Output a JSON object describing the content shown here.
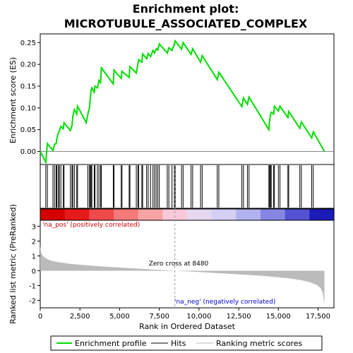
{
  "chart_data": {
    "type": "line",
    "title_line1": "Enrichment plot:",
    "title_line2": "MICROTUBULE_ASSOCIATED_COMPLEX",
    "es_panel": {
      "ylabel": "Enrichment score (ES)",
      "ylim": [
        -0.03,
        0.27
      ],
      "yticks": [
        0.0,
        0.05,
        0.1,
        0.15,
        0.2,
        0.25
      ],
      "ytick_labels": [
        "0.00",
        "0.05",
        "0.10",
        "0.15",
        "0.20",
        "0.25"
      ],
      "series": [
        {
          "name": "Enrichment profile",
          "color": "#00dd00",
          "x": [
            0,
            350,
            450,
            800,
            900,
            1000,
            1050,
            1150,
            1200,
            1300,
            1450,
            1500,
            1900,
            2000,
            2050,
            2150,
            2300,
            2350,
            2900,
            3000,
            3100,
            3150,
            3200,
            3250,
            3400,
            3450,
            3600,
            3700,
            3800,
            3850,
            4600,
            4650,
            4800,
            5100,
            5150,
            5600,
            5650,
            6050,
            6150,
            6200,
            6400,
            6450,
            6700,
            6800,
            6950,
            7100,
            7200,
            7300,
            7400,
            7500,
            8000,
            8100,
            8300,
            8450,
            8500,
            8900,
            9000,
            9500,
            9600,
            10100,
            10200,
            11150,
            11250,
            12700,
            12800,
            13050,
            13150,
            14400,
            14450,
            14500,
            14550,
            14700,
            14750,
            15000,
            15100,
            15600,
            15650,
            16350,
            16450,
            17100,
            17200,
            17900
          ]
        }
      ],
      "es_values": [
        0.0,
        -0.025,
        0.018,
        0.002,
        0.016,
        0.018,
        0.03,
        0.044,
        0.046,
        0.058,
        0.052,
        0.066,
        0.048,
        0.06,
        0.08,
        0.096,
        0.086,
        0.104,
        0.066,
        0.086,
        0.1,
        0.12,
        0.14,
        0.146,
        0.136,
        0.15,
        0.146,
        0.163,
        0.158,
        0.192,
        0.155,
        0.187,
        0.18,
        0.168,
        0.184,
        0.17,
        0.195,
        0.18,
        0.2,
        0.211,
        0.205,
        0.224,
        0.213,
        0.225,
        0.218,
        0.232,
        0.226,
        0.236,
        0.233,
        0.247,
        0.226,
        0.238,
        0.232,
        0.246,
        0.254,
        0.235,
        0.25,
        0.223,
        0.236,
        0.205,
        0.22,
        0.165,
        0.182,
        0.103,
        0.123,
        0.108,
        0.125,
        0.05,
        0.07,
        0.085,
        0.09,
        0.086,
        0.104,
        0.093,
        0.104,
        0.078,
        0.092,
        0.053,
        0.068,
        0.031,
        0.045,
        0.0
      ],
      "hits": [
        350,
        450,
        800,
        900,
        1000,
        1050,
        1150,
        1200,
        1300,
        1450,
        1500,
        1900,
        2000,
        2050,
        2150,
        2300,
        2350,
        3000,
        3100,
        3150,
        3200,
        3250,
        3400,
        3450,
        3600,
        3700,
        3800,
        3850,
        4600,
        4650,
        5100,
        5150,
        5600,
        5650,
        6050,
        6150,
        6200,
        6400,
        6450,
        6700,
        6800,
        6950,
        7100,
        7200,
        7300,
        7400,
        7500,
        8000,
        8100,
        8300,
        8450,
        8500,
        8900,
        9000,
        9500,
        9600,
        10100,
        10200,
        11150,
        11250,
        12700,
        12800,
        13050,
        13150,
        14400,
        14450,
        14500,
        14550,
        14700,
        14750,
        15000,
        15100,
        15600,
        15650,
        16350,
        16450,
        17100,
        17200
      ]
    },
    "rank_panel": {
      "ylabel": "Ranked list metric (PreRanked)",
      "xlabel": "Rank in Ordered Dataset",
      "ylim": [
        -2.5,
        3.4
      ],
      "yticks": [
        -2,
        -1,
        0,
        1,
        2,
        3
      ],
      "xlim": [
        0,
        18500
      ],
      "xticks": [
        0,
        2500,
        5000,
        7500,
        10000,
        12500,
        15000,
        17500
      ],
      "xtick_labels": [
        "0",
        "2,500",
        "5,000",
        "7,500",
        "10,000",
        "12,500",
        "15,000",
        "17,500"
      ],
      "zero_cross": 8480,
      "zero_cross_label": "Zero cross at 8480",
      "pos_label": "'na_pos' (positively correlated)",
      "neg_label": "'na_neg' (negatively correlated)",
      "metric_x": [
        0,
        30,
        80,
        200,
        400,
        700,
        1000,
        1500,
        2000,
        3000,
        4000,
        5000,
        6000,
        7000,
        8000,
        8480,
        9000,
        10000,
        11000,
        12000,
        13000,
        14000,
        15000,
        15800,
        16500,
        17000,
        17400,
        17650,
        17800,
        17870,
        17900
      ],
      "metric_y": [
        1.75,
        1.35,
        1.15,
        0.95,
        0.8,
        0.68,
        0.6,
        0.52,
        0.45,
        0.36,
        0.28,
        0.21,
        0.15,
        0.09,
        0.03,
        0.0,
        -0.03,
        -0.09,
        -0.15,
        -0.21,
        -0.28,
        -0.35,
        -0.44,
        -0.53,
        -0.65,
        -0.78,
        -0.95,
        -1.15,
        -1.5,
        -2.0,
        -2.35
      ]
    },
    "color_bar_colors": [
      "#d50000",
      "#e51a1a",
      "#ef4a4a",
      "#f47979",
      "#f8a4a4",
      "#f9c8d9",
      "#e5d8f0",
      "#d4d0f4",
      "#b2b2ee",
      "#8585e3",
      "#5252d3",
      "#1b1bb8"
    ],
    "grid": false,
    "legend_placement": "bottom",
    "legend": [
      {
        "label": "Enrichment profile",
        "color": "#00dd00",
        "style": "line"
      },
      {
        "label": "Hits",
        "color": "#000000",
        "style": "line"
      },
      {
        "label": "Ranking metric scores",
        "color": "#bbbbbb",
        "style": "line"
      }
    ]
  }
}
